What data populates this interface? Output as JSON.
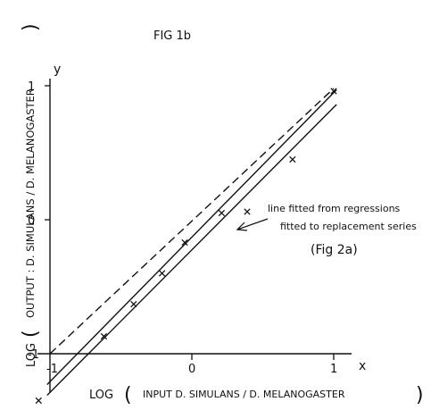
{
  "figure_label": "FIG  1b",
  "chart_data": {
    "type": "line",
    "title": "",
    "xlabel": "LOG  (INPUT   D. SIMULANS  /  D. MELANOGASTER)",
    "xlabel_parts": [
      "LOG",
      "(",
      "INPUT   D. SIMULANS  /  D. MELANOGASTER",
      ")"
    ],
    "ylabel": "LOG  (OUTPUT  :  D. SIMULANS  /  D. MELANOGASTER)",
    "ylabel_parts": [
      "LOG",
      "(",
      "OUTPUT  :  D. SIMULANS  /  D. MELANOGASTER",
      ")"
    ],
    "x_axis_symbol": "x",
    "y_axis_symbol": "y",
    "xlim": [
      -1,
      1
    ],
    "ylim": [
      -1,
      1
    ],
    "x_ticks": [
      {
        "value": -1,
        "label": "-1"
      },
      {
        "value": 0,
        "label": "0"
      },
      {
        "value": 1,
        "label": "1"
      }
    ],
    "y_ticks": [
      {
        "value": -1,
        "label": "-1"
      },
      {
        "value": 0,
        "label": "0"
      },
      {
        "value": 1,
        "label": "1"
      }
    ],
    "grid": false,
    "series": [
      {
        "style": "dashed",
        "x": [
          -1.0,
          1.0
        ],
        "y": [
          -1.0,
          0.98
        ]
      },
      {
        "style": "solid",
        "x": [
          -1.02,
          1.02
        ],
        "y": [
          -1.23,
          0.97
        ]
      },
      {
        "style": "solid",
        "x": [
          -1.02,
          1.02
        ],
        "y": [
          -1.31,
          0.86
        ]
      }
    ],
    "points": {
      "marker": "x",
      "x": [
        -1.08,
        -0.62,
        -0.41,
        -0.21,
        -0.05,
        0.21,
        0.39,
        0.71,
        1.0
      ],
      "y": [
        -1.35,
        -0.87,
        -0.63,
        -0.4,
        -0.17,
        0.05,
        0.06,
        0.45,
        0.96
      ]
    },
    "annotation": {
      "lines": [
        "line  fitted  from  regressions",
        "fitted  to  replacement  series",
        "(Fig  2a)"
      ]
    }
  }
}
